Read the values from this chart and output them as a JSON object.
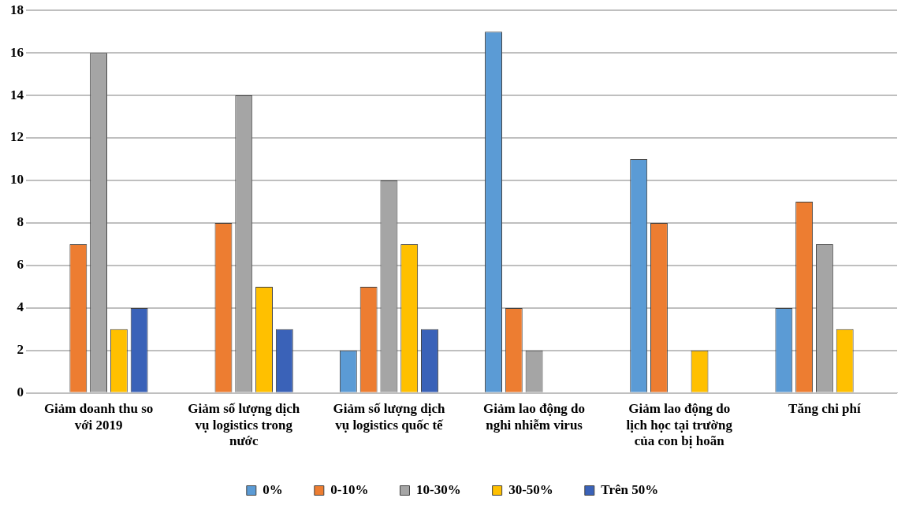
{
  "chart_data": {
    "type": "bar",
    "categories": [
      "Giảm doanh thu so với 2019",
      "Giảm số lượng dịch vụ logistics trong nước",
      "Giảm số lượng dịch vụ logistics quốc tế",
      "Giảm lao động do nghi nhiễm virus",
      "Giảm lao động do lịch học tại trường của con bị hoãn",
      "Tăng chi phí"
    ],
    "series": [
      {
        "name": "0%",
        "color": "#5b9bd5",
        "values": [
          0,
          0,
          2,
          17,
          11,
          4
        ]
      },
      {
        "name": "0-10%",
        "color": "#ed7d31",
        "values": [
          7,
          8,
          5,
          4,
          8,
          9
        ]
      },
      {
        "name": "10-30%",
        "color": "#a5a5a5",
        "values": [
          16,
          14,
          10,
          2,
          0,
          7
        ]
      },
      {
        "name": "30-50%",
        "color": "#ffc000",
        "values": [
          3,
          5,
          7,
          0,
          2,
          3
        ]
      },
      {
        "name": "Trên 50%",
        "color": "#3a62b8",
        "values": [
          4,
          3,
          3,
          0,
          0,
          0
        ]
      }
    ],
    "ylim": [
      0,
      18
    ],
    "yticks": [
      0,
      2,
      4,
      6,
      8,
      10,
      12,
      14,
      16,
      18
    ],
    "grid": "y",
    "legend": "bottom"
  }
}
